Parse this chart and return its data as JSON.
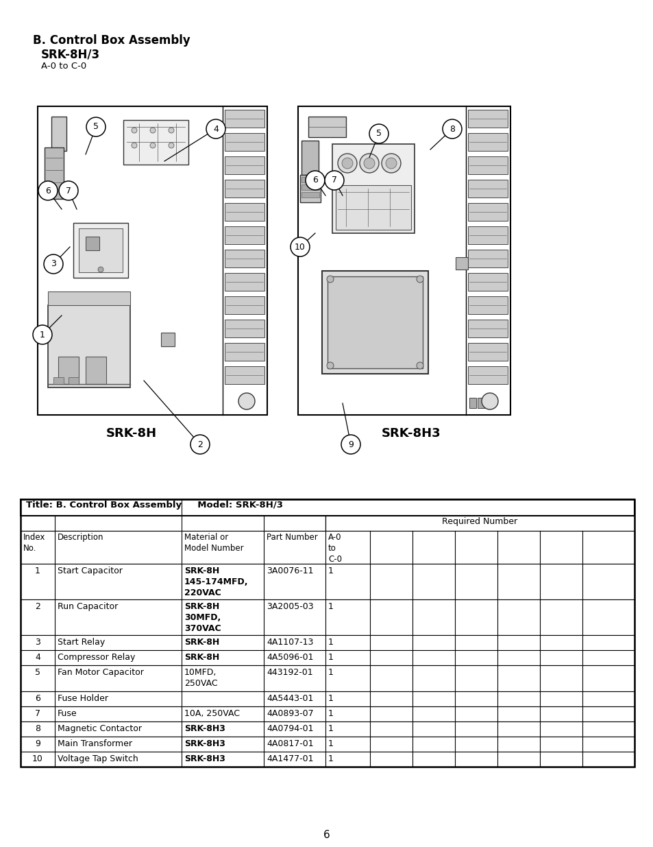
{
  "title_line1": "B. Control Box Assembly",
  "title_line2": "SRK-8H/3",
  "title_line3": "A-0 to C-0",
  "page_number": "6",
  "table_header": "Title: B. Control Box Assembly     Model: SRK-8H/3",
  "required_number_header": "Required Number",
  "rows": [
    {
      "idx": "1",
      "desc": "Start Capacitor",
      "model": "SRK-8H\n145-174MFD,\n220VAC",
      "part": "3A0076-11",
      "qty": "1",
      "model_bold": true
    },
    {
      "idx": "2",
      "desc": "Run Capacitor",
      "model": "SRK-8H\n30MFD,\n370VAC",
      "part": "3A2005-03",
      "qty": "1",
      "model_bold": true
    },
    {
      "idx": "3",
      "desc": "Start Relay",
      "model": "SRK-8H",
      "part": "4A1107-13",
      "qty": "1",
      "model_bold": true
    },
    {
      "idx": "4",
      "desc": "Compressor Relay",
      "model": "SRK-8H",
      "part": "4A5096-01",
      "qty": "1",
      "model_bold": true
    },
    {
      "idx": "5",
      "desc": "Fan Motor Capacitor",
      "model": "10MFD,\n250VAC",
      "part": "443192-01",
      "qty": "1",
      "model_bold": false
    },
    {
      "idx": "6",
      "desc": "Fuse Holder",
      "model": "",
      "part": "4A5443-01",
      "qty": "1",
      "model_bold": false
    },
    {
      "idx": "7",
      "desc": "Fuse",
      "model": "10A, 250VAC",
      "part": "4A0893-07",
      "qty": "1",
      "model_bold": false
    },
    {
      "idx": "8",
      "desc": "Magnetic Contactor",
      "model": "SRK-8H3",
      "part": "4A0794-01",
      "qty": "1",
      "model_bold": true
    },
    {
      "idx": "9",
      "desc": "Main Transformer",
      "model": "SRK-8H3",
      "part": "4A0817-01",
      "qty": "1",
      "model_bold": true
    },
    {
      "idx": "10",
      "desc": "Voltage Tap Switch",
      "model": "SRK-8H3",
      "part": "4A1477-01",
      "qty": "1",
      "model_bold": true
    }
  ],
  "bg_color": "#ffffff"
}
